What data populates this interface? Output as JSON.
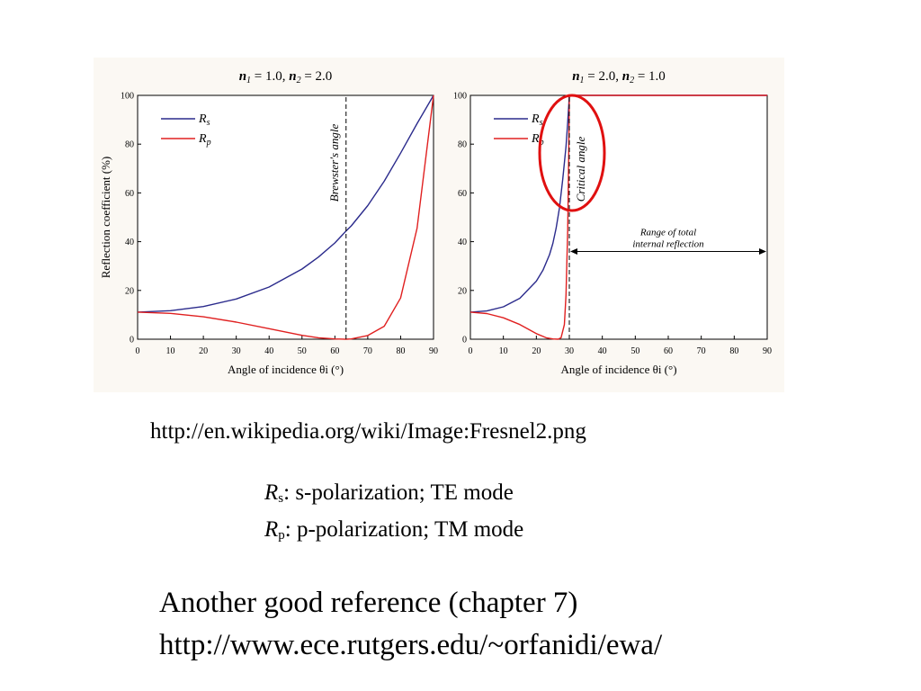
{
  "chart_data": [
    {
      "type": "line",
      "title_n1": "1.0",
      "title_n2": "2.0",
      "xlabel": "Angle of incidence θi (°)",
      "ylabel": "Reflection coefficient (%)",
      "xlim": [
        0,
        90
      ],
      "ylim": [
        0,
        100
      ],
      "xticks": [
        0,
        10,
        20,
        30,
        40,
        50,
        60,
        70,
        80,
        90
      ],
      "yticks": [
        0,
        20,
        40,
        60,
        80,
        100
      ],
      "grid": false,
      "legend_position": "top-left",
      "series": [
        {
          "name": "Rs",
          "color": "#2b2b8c",
          "x": [
            0,
            10,
            20,
            30,
            40,
            50,
            55,
            60,
            63.4,
            65,
            70,
            75,
            80,
            85,
            90
          ],
          "y": [
            11.1,
            11.7,
            13.4,
            16.5,
            21.4,
            28.8,
            33.7,
            39.5,
            44.4,
            46.5,
            54.8,
            64.8,
            76.3,
            88.4,
            100
          ]
        },
        {
          "name": "Rp",
          "color": "#e02020",
          "x": [
            0,
            10,
            20,
            30,
            40,
            50,
            55,
            60,
            63.4,
            65,
            70,
            75,
            80,
            85,
            90
          ],
          "y": [
            11.1,
            10.6,
            9.2,
            7.0,
            4.3,
            1.6,
            0.6,
            0.1,
            0,
            0.1,
            1.5,
            5.3,
            16.9,
            45.5,
            100
          ]
        }
      ],
      "annotations": [
        {
          "text": "Brewster's angle",
          "x": 63.4
        }
      ]
    },
    {
      "type": "line",
      "title_n1": "2.0",
      "title_n2": "1.0",
      "xlabel": "Angle of incidence θi (°)",
      "ylabel": "",
      "xlim": [
        0,
        90
      ],
      "ylim": [
        0,
        100
      ],
      "xticks": [
        0,
        10,
        20,
        30,
        40,
        50,
        60,
        70,
        80,
        90
      ],
      "yticks": [
        0,
        20,
        40,
        60,
        80,
        100
      ],
      "grid": false,
      "legend_position": "top-left",
      "series": [
        {
          "name": "Rs",
          "color": "#2b2b8c",
          "x": [
            0,
            5,
            10,
            15,
            20,
            22,
            24,
            25,
            26,
            27,
            28,
            29,
            29.5,
            29.8,
            30,
            90
          ],
          "y": [
            11.1,
            11.6,
            13.3,
            16.8,
            23.8,
            28.3,
            34.7,
            39.3,
            45.5,
            53.8,
            65.7,
            79.0,
            89.0,
            95.5,
            100,
            100
          ]
        },
        {
          "name": "Rp",
          "color": "#e02020",
          "x": [
            0,
            5,
            10,
            15,
            20,
            23,
            25,
            26.6,
            27.5,
            28.5,
            29,
            29.5,
            29.8,
            30,
            90
          ],
          "y": [
            11.1,
            10.5,
            8.8,
            6.0,
            2.3,
            0.6,
            0.1,
            0,
            0.6,
            6.0,
            18.0,
            45.0,
            75.0,
            100,
            100
          ]
        }
      ],
      "annotations": [
        {
          "text": "Critical angle",
          "x": 30
        },
        {
          "text": "Range of total",
          "x": 30
        },
        {
          "text": "internal reflection",
          "x": 30
        }
      ]
    }
  ],
  "caption_url": "http://en.wikipedia.org/wiki/Image:Fresnel2.png",
  "legend_notes": [
    {
      "sym": "R",
      "sub": "s",
      "text": ":  s-polarization; TE mode"
    },
    {
      "sym": "R",
      "sub": "p",
      "text": ": p-polarization; TM mode"
    }
  ],
  "reference": {
    "line1": "Another good reference (chapter 7)",
    "line2": "http://www.ece.rutgers.edu/~orfanidi/ewa/"
  },
  "colors": {
    "panel_bg": "#fbf8f3",
    "rs": "#2b2b8c",
    "rp": "#e02020",
    "highlight": "#e01010"
  }
}
